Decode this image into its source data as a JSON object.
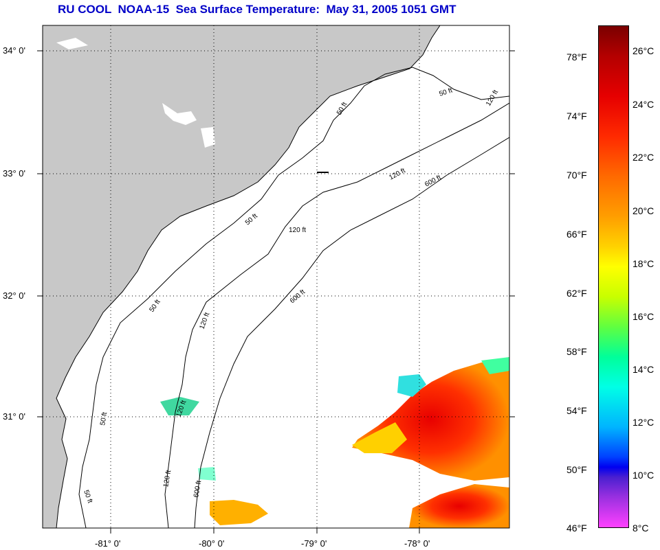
{
  "title": "RU COOL  NOAA-15  Sea Surface Temperature:  May 31, 2005 1051 GMT",
  "map": {
    "lat_labels": [
      "34° 0'",
      "33° 0'",
      "32° 0'",
      "31° 0'"
    ],
    "lon_labels": [
      "-81° 0'",
      "-80° 0'",
      "-79° 0'",
      "-78° 0'"
    ],
    "contour_labels": [
      "50 ft",
      "50 ft",
      "50 ft",
      "50 ft",
      "50 ft",
      "50 ft",
      "120 ft",
      "120 ft",
      "120 ft",
      "120 ft",
      "120 ft",
      "120 ft",
      "600 ft",
      "600 ft",
      "600 ft"
    ],
    "land_color": "#c8c8c8",
    "ocean_color": "#ffffff"
  },
  "colorbar": {
    "fahrenheit": [
      "78°F",
      "74°F",
      "70°F",
      "66°F",
      "62°F",
      "58°F",
      "54°F",
      "50°F",
      "46°F"
    ],
    "celsius": [
      "26°C",
      "24°C",
      "22°C",
      "20°C",
      "18°C",
      "16°C",
      "14°C",
      "12°C",
      "10°C",
      "8°C"
    ]
  }
}
